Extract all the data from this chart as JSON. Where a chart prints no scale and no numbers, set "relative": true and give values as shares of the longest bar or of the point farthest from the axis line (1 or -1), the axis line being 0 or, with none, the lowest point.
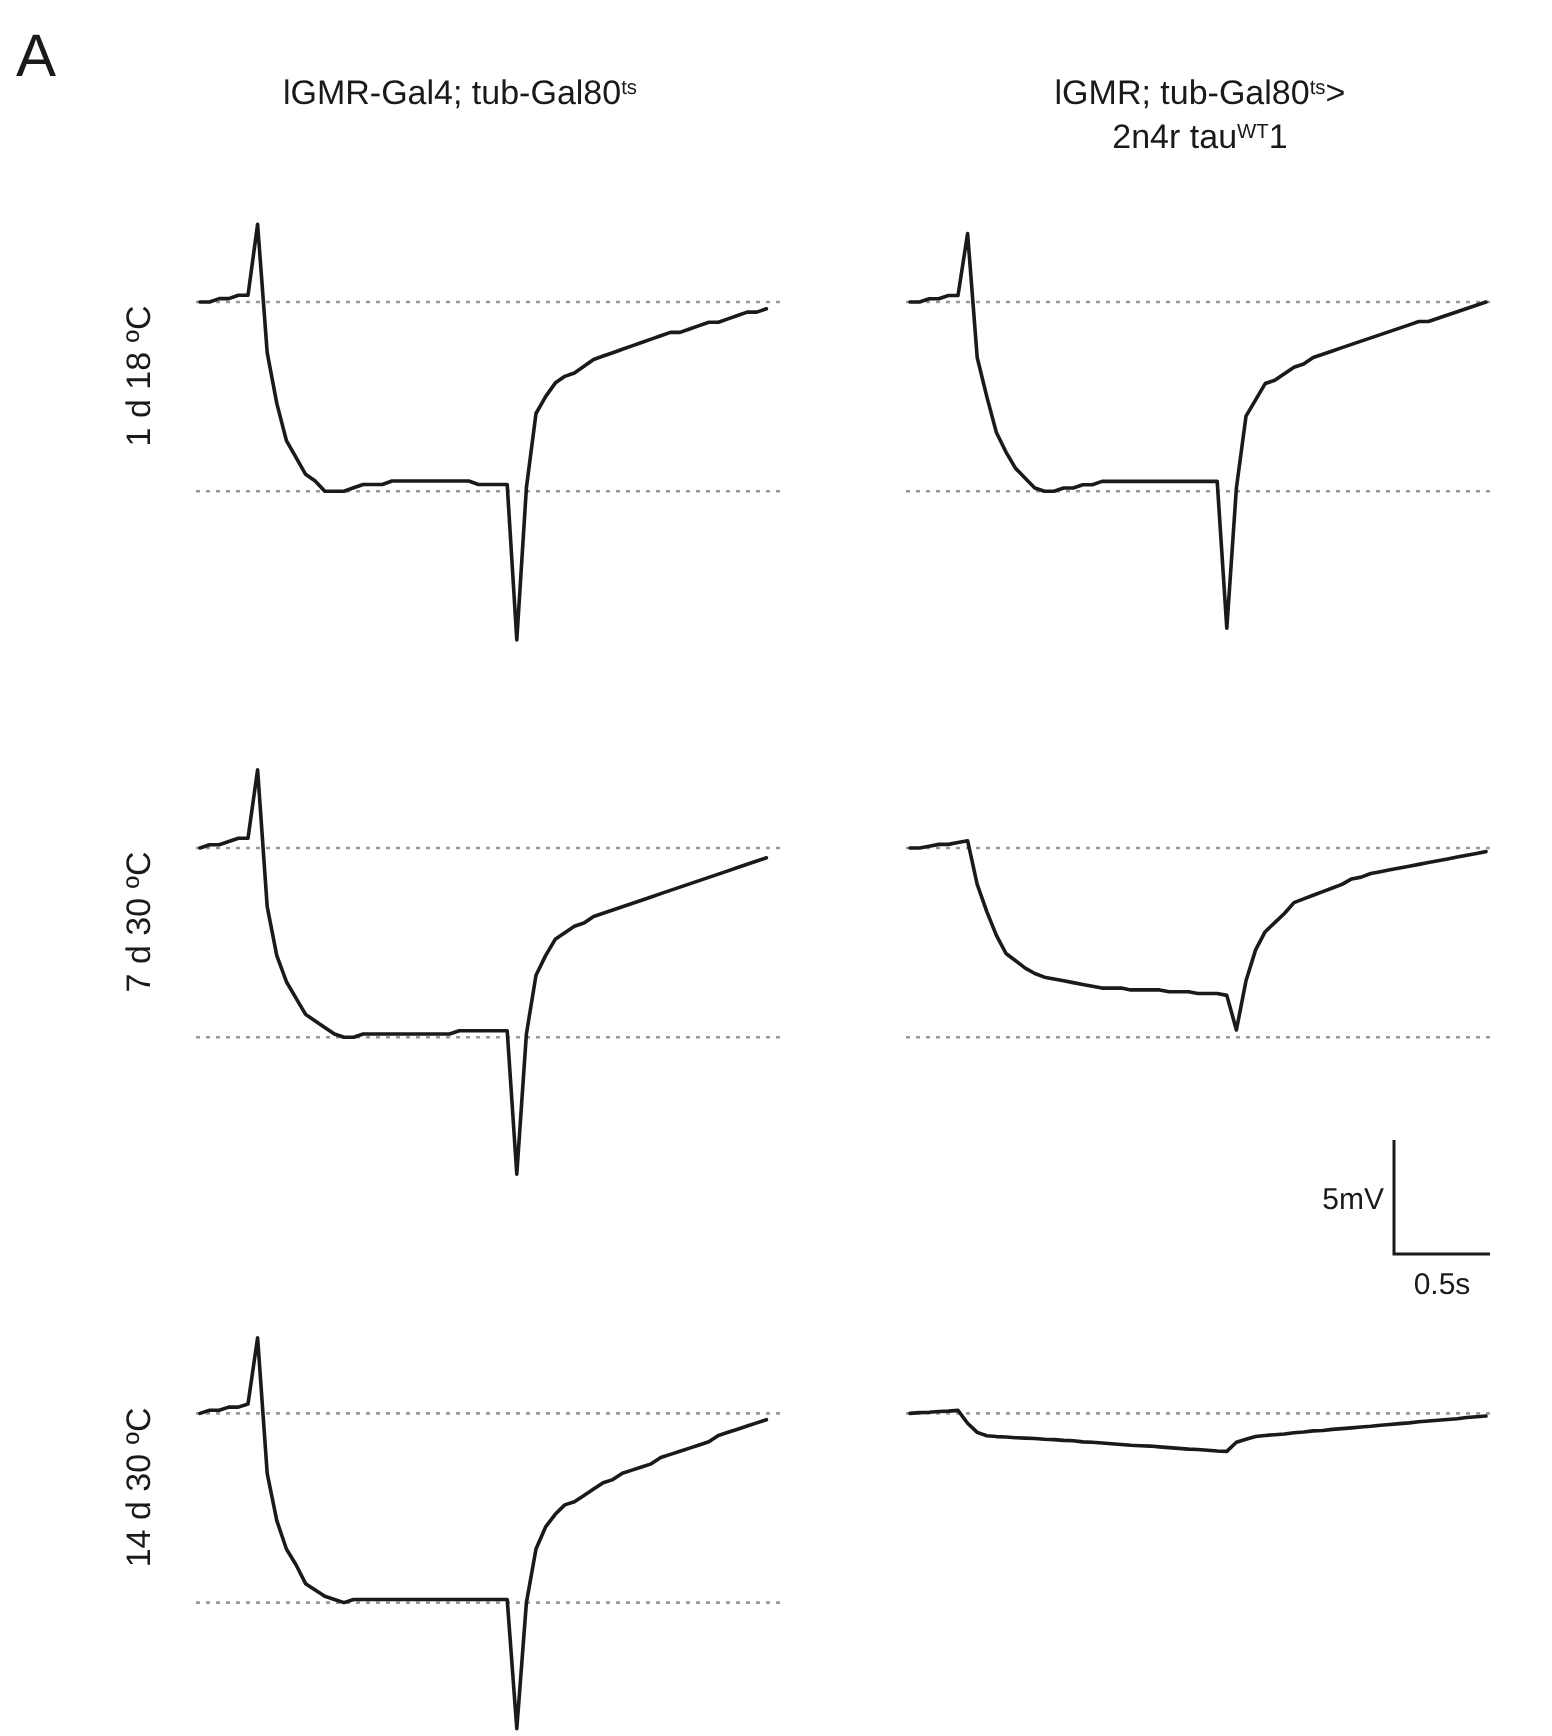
{
  "chart_data": [
    {
      "type": "line",
      "title": "lGMR-Gal4; tub-Gal80$^{ts}$",
      "ylabel": "1 d 18 ºC",
      "annotations": [
        "A"
      ],
      "relative": true,
      "line_style": "solid",
      "categories": [
        null,
        null,
        null,
        null,
        null,
        null,
        null,
        null,
        null,
        null,
        null,
        null,
        null,
        null,
        null,
        null,
        null,
        null,
        null,
        null,
        null,
        null,
        null,
        null,
        null,
        null,
        null,
        null,
        null,
        null,
        null,
        null,
        null,
        null,
        null,
        null,
        null,
        null,
        null,
        null,
        null,
        null,
        null,
        null,
        null,
        null,
        null,
        null,
        null,
        null,
        null,
        null,
        null,
        null,
        null,
        null,
        null,
        null,
        null,
        null,
        null
      ],
      "ref_lines": [
        {
          "axis": "y",
          "value": 0,
          "color": "#999999",
          "line_style": "dotted"
        },
        {
          "axis": "y",
          "value": -0.56,
          "color": "#999999",
          "line_style": "dotted"
        }
      ],
      "series": [
        {
          "color": "#1a1a1a",
          "values": [
            0,
            0,
            0.01,
            0.01,
            0.02,
            0.02,
            0.23,
            -0.15,
            -0.3,
            -0.41,
            -0.46,
            -0.51,
            -0.53,
            -0.56,
            -0.56,
            -0.56,
            -0.55,
            -0.54,
            -0.54,
            -0.54,
            -0.53,
            -0.53,
            -0.53,
            -0.53,
            -0.53,
            -0.53,
            -0.53,
            -0.53,
            -0.53,
            -0.54,
            -0.54,
            -0.54,
            -0.54,
            -1,
            -0.55,
            -0.33,
            -0.28,
            -0.24,
            -0.22,
            -0.21,
            -0.19,
            -0.17,
            -0.16,
            -0.15,
            -0.14,
            -0.13,
            -0.12,
            -0.11,
            -0.1,
            -0.09,
            -0.09,
            -0.08,
            -0.07,
            -0.06,
            -0.06,
            -0.05,
            -0.04,
            -0.03,
            -0.03,
            -0.02,
            null
          ]
        }
      ]
    },
    {
      "type": "line",
      "title": "lGMR; tub-Gal80$^{ts}$>\n2n4r tau$^{WT}$1",
      "relative": true,
      "line_style": "solid",
      "categories": [
        null,
        null,
        null,
        null,
        null,
        null,
        null,
        null,
        null,
        null,
        null,
        null,
        null,
        null,
        null,
        null,
        null,
        null,
        null,
        null,
        null,
        null,
        null,
        null,
        null,
        null,
        null,
        null,
        null,
        null,
        null,
        null,
        null,
        null,
        null,
        null,
        null,
        null,
        null,
        null,
        null,
        null,
        null,
        null,
        null,
        null,
        null,
        null,
        null,
        null,
        null,
        null,
        null,
        null,
        null,
        null,
        null,
        null,
        null,
        null,
        null
      ],
      "ref_lines": [
        {
          "axis": "y",
          "value": 0,
          "color": "#999999",
          "line_style": "dotted"
        },
        {
          "axis": "y",
          "value": -0.58,
          "color": "#999999",
          "line_style": "dotted"
        }
      ],
      "series": [
        {
          "color": "#1a1a1a",
          "values": [
            0,
            0,
            0.01,
            0.01,
            0.02,
            0.02,
            0.21,
            -0.17,
            -0.29,
            -0.4,
            -0.46,
            -0.51,
            -0.54,
            -0.57,
            -0.58,
            -0.58,
            -0.57,
            -0.57,
            -0.56,
            -0.56,
            -0.55,
            -0.55,
            -0.55,
            -0.55,
            -0.55,
            -0.55,
            -0.55,
            -0.55,
            -0.55,
            -0.55,
            -0.55,
            -0.55,
            -0.55,
            -1,
            -0.57,
            -0.35,
            -0.3,
            -0.25,
            -0.24,
            -0.22,
            -0.2,
            -0.19,
            -0.17,
            -0.16,
            -0.15,
            -0.14,
            -0.13,
            -0.12,
            -0.11,
            -0.1,
            -0.09,
            -0.08,
            -0.07,
            -0.06,
            -0.06,
            -0.05,
            -0.04,
            -0.03,
            -0.02,
            -0.01,
            0
          ]
        }
      ]
    },
    {
      "type": "line",
      "ylabel": "7 d 30 ºC",
      "relative": true,
      "line_style": "solid",
      "categories": [
        null,
        null,
        null,
        null,
        null,
        null,
        null,
        null,
        null,
        null,
        null,
        null,
        null,
        null,
        null,
        null,
        null,
        null,
        null,
        null,
        null,
        null,
        null,
        null,
        null,
        null,
        null,
        null,
        null,
        null,
        null,
        null,
        null,
        null,
        null,
        null,
        null,
        null,
        null,
        null,
        null,
        null,
        null,
        null,
        null,
        null,
        null,
        null,
        null,
        null,
        null,
        null,
        null,
        null,
        null,
        null,
        null,
        null,
        null,
        null,
        null
      ],
      "ref_lines": [
        {
          "axis": "y",
          "value": 0,
          "color": "#999999",
          "line_style": "dotted"
        },
        {
          "axis": "y",
          "value": -0.58,
          "color": "#999999",
          "line_style": "dotted"
        }
      ],
      "series": [
        {
          "color": "#1a1a1a",
          "values": [
            0,
            0.01,
            0.01,
            0.02,
            0.03,
            0.03,
            0.24,
            -0.18,
            -0.33,
            -0.41,
            -0.46,
            -0.51,
            -0.53,
            -0.55,
            -0.57,
            -0.58,
            -0.58,
            -0.57,
            -0.57,
            -0.57,
            -0.57,
            -0.57,
            -0.57,
            -0.57,
            -0.57,
            -0.57,
            -0.57,
            -0.56,
            -0.56,
            -0.56,
            -0.56,
            -0.56,
            -0.56,
            -1,
            -0.57,
            -0.39,
            -0.33,
            -0.28,
            -0.26,
            -0.24,
            -0.23,
            -0.21,
            -0.2,
            -0.19,
            -0.18,
            -0.17,
            -0.16,
            -0.15,
            -0.14,
            -0.13,
            -0.12,
            -0.11,
            -0.1,
            -0.09,
            -0.08,
            -0.07,
            -0.06,
            -0.05,
            -0.04,
            -0.03,
            null
          ]
        }
      ]
    },
    {
      "type": "line",
      "annotations": [
        "5mV",
        "0.5s"
      ],
      "relative": true,
      "line_style": "solid",
      "categories": [
        null,
        null,
        null,
        null,
        null,
        null,
        null,
        null,
        null,
        null,
        null,
        null,
        null,
        null,
        null,
        null,
        null,
        null,
        null,
        null,
        null,
        null,
        null,
        null,
        null,
        null,
        null,
        null,
        null,
        null,
        null,
        null,
        null,
        null,
        null,
        null,
        null,
        null,
        null,
        null,
        null,
        null,
        null,
        null,
        null,
        null,
        null,
        null,
        null,
        null,
        null,
        null,
        null,
        null,
        null,
        null,
        null,
        null,
        null,
        null,
        null
      ],
      "ref_lines": [
        {
          "axis": "y",
          "value": 0,
          "color": "#999999",
          "line_style": "dotted"
        },
        {
          "axis": "y",
          "value": -1.04,
          "color": "#999999",
          "line_style": "dotted"
        }
      ],
      "series": [
        {
          "color": "#1a1a1a",
          "values": [
            0,
            0,
            0.01,
            0.02,
            0.02,
            0.03,
            0.04,
            -0.2,
            -0.35,
            -0.48,
            -0.58,
            -0.62,
            -0.66,
            -0.69,
            -0.71,
            -0.72,
            -0.73,
            -0.74,
            -0.75,
            -0.76,
            -0.77,
            -0.77,
            -0.77,
            -0.78,
            -0.78,
            -0.78,
            -0.78,
            -0.79,
            -0.79,
            -0.79,
            -0.8,
            -0.8,
            -0.8,
            -0.81,
            -1,
            -0.73,
            -0.56,
            -0.46,
            -0.41,
            -0.36,
            -0.3,
            -0.28,
            -0.26,
            -0.24,
            -0.22,
            -0.2,
            -0.17,
            -0.16,
            -0.14,
            -0.13,
            -0.12,
            -0.11,
            -0.1,
            -0.09,
            -0.08,
            -0.07,
            -0.06,
            -0.05,
            -0.04,
            -0.03,
            -0.02
          ]
        }
      ]
    },
    {
      "type": "line",
      "ylabel": "14 d 30 ºC",
      "relative": true,
      "line_style": "solid",
      "categories": [
        null,
        null,
        null,
        null,
        null,
        null,
        null,
        null,
        null,
        null,
        null,
        null,
        null,
        null,
        null,
        null,
        null,
        null,
        null,
        null,
        null,
        null,
        null,
        null,
        null,
        null,
        null,
        null,
        null,
        null,
        null,
        null,
        null,
        null,
        null,
        null,
        null,
        null,
        null,
        null,
        null,
        null,
        null,
        null,
        null,
        null,
        null,
        null,
        null,
        null,
        null,
        null,
        null,
        null,
        null,
        null,
        null,
        null,
        null,
        null,
        null
      ],
      "ref_lines": [
        {
          "axis": "y",
          "value": 0,
          "color": "#999999",
          "line_style": "dotted"
        },
        {
          "axis": "y",
          "value": -0.6,
          "color": "#999999",
          "line_style": "dotted"
        }
      ],
      "series": [
        {
          "color": "#1a1a1a",
          "values": [
            0,
            0.01,
            0.01,
            0.02,
            0.02,
            0.03,
            0.24,
            -0.19,
            -0.34,
            -0.43,
            -0.48,
            -0.54,
            -0.56,
            -0.58,
            -0.59,
            -0.6,
            -0.59,
            -0.59,
            -0.59,
            -0.59,
            -0.59,
            -0.59,
            -0.59,
            -0.59,
            -0.59,
            -0.59,
            -0.59,
            -0.59,
            -0.59,
            -0.59,
            -0.59,
            -0.59,
            -0.59,
            -1,
            -0.6,
            -0.43,
            -0.36,
            -0.32,
            -0.29,
            -0.28,
            -0.26,
            -0.24,
            -0.22,
            -0.21,
            -0.19,
            -0.18,
            -0.17,
            -0.16,
            -0.14,
            -0.13,
            -0.12,
            -0.11,
            -0.1,
            -0.09,
            -0.07,
            -0.06,
            -0.05,
            -0.04,
            -0.03,
            -0.02,
            null
          ]
        }
      ]
    },
    {
      "type": "line",
      "relative": true,
      "line_style": "solid",
      "categories": [
        null,
        null,
        null,
        null,
        null,
        null,
        null,
        null,
        null,
        null,
        null,
        null,
        null,
        null,
        null,
        null,
        null,
        null,
        null,
        null,
        null,
        null,
        null,
        null,
        null,
        null,
        null,
        null,
        null,
        null,
        null,
        null,
        null,
        null,
        null,
        null,
        null,
        null,
        null,
        null,
        null,
        null,
        null,
        null,
        null,
        null,
        null,
        null,
        null,
        null,
        null,
        null,
        null,
        null,
        null,
        null,
        null,
        null,
        null,
        null,
        null
      ],
      "ref_lines": [
        {
          "axis": "y",
          "value": 0,
          "color": "#999999",
          "line_style": "dotted"
        }
      ],
      "series": [
        {
          "color": "#1a1a1a",
          "values": [
            0,
            0.02,
            0.03,
            0.05,
            0.06,
            0.08,
            -0.26,
            -0.5,
            -0.59,
            -0.61,
            -0.62,
            -0.64,
            -0.65,
            -0.66,
            -0.68,
            -0.69,
            -0.71,
            -0.72,
            -0.75,
            -0.76,
            -0.78,
            -0.8,
            -0.82,
            -0.84,
            -0.85,
            -0.86,
            -0.88,
            -0.9,
            -0.92,
            -0.94,
            -0.95,
            -0.97,
            -0.99,
            -1,
            -0.76,
            -0.68,
            -0.61,
            -0.58,
            -0.56,
            -0.54,
            -0.51,
            -0.49,
            -0.46,
            -0.45,
            -0.42,
            -0.4,
            -0.38,
            -0.36,
            -0.34,
            -0.31,
            -0.29,
            -0.27,
            -0.25,
            -0.22,
            -0.2,
            -0.18,
            -0.16,
            -0.14,
            -0.11,
            -0.09,
            -0.07
          ]
        }
      ]
    }
  ]
}
